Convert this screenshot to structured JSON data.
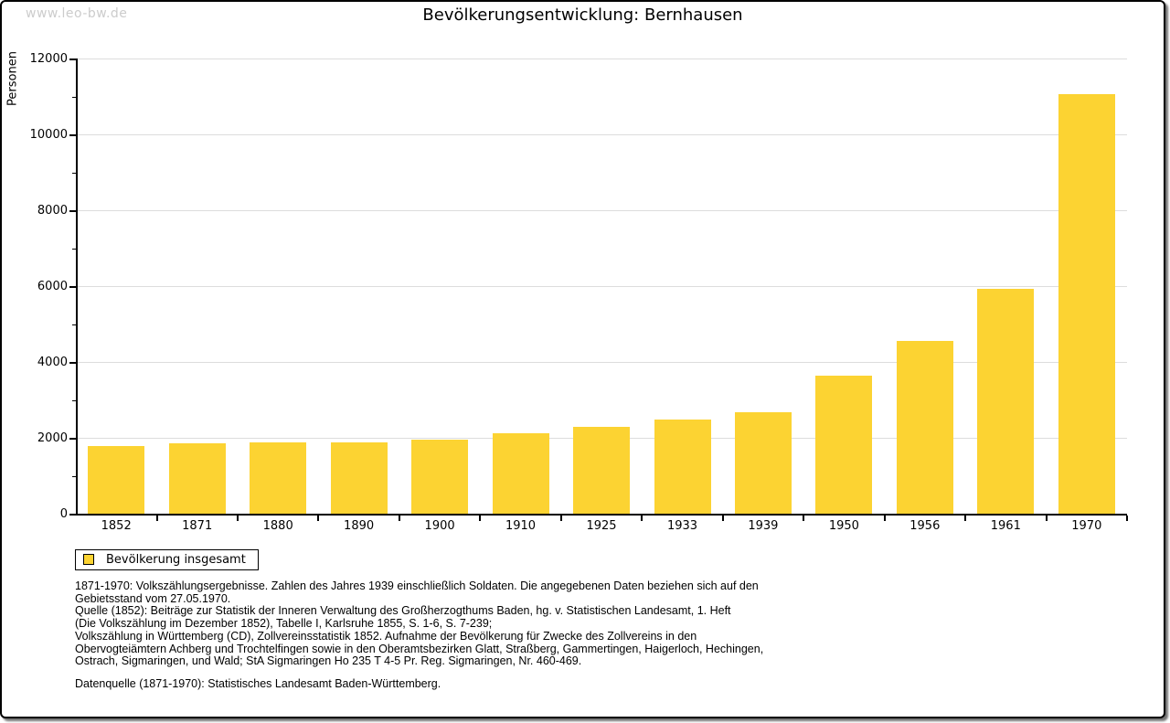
{
  "watermark": "www.leo-bw.de",
  "title": "Bevölkerungsentwicklung: Bernhausen",
  "legend": {
    "label": "Bevölkerung insgesamt"
  },
  "colors": {
    "bar": "#fcd332",
    "grid": "#dddddd",
    "axis": "#000000",
    "watermark": "#cccccc"
  },
  "chart_data": {
    "type": "bar",
    "title": "Bevölkerungsentwicklung: Bernhausen",
    "xlabel": "",
    "ylabel": "Personen",
    "series_name": "Bevölkerung insgesamt",
    "categories": [
      "1852",
      "1871",
      "1880",
      "1890",
      "1900",
      "1910",
      "1925",
      "1933",
      "1939",
      "1950",
      "1956",
      "1961",
      "1970"
    ],
    "values": [
      1775,
      1860,
      1885,
      1880,
      1955,
      2120,
      2280,
      2495,
      2665,
      3650,
      4555,
      5925,
      11060
    ],
    "ylim": [
      0,
      12000
    ],
    "ytick_step": 2000,
    "yminor_step": 1000,
    "yticks": [
      0,
      2000,
      4000,
      6000,
      8000,
      10000,
      12000
    ],
    "grid": true,
    "legend_position": "bottom-left",
    "bar_color": "#fcd332"
  },
  "footnotes": {
    "lines": [
      "1871-1970: Volkszählungsergebnisse. Zahlen des Jahres 1939 einschließlich Soldaten. Die angegebenen Daten beziehen sich auf den",
      "Gebietsstand vom 27.05.1970.",
      "Quelle (1852): Beiträge zur Statistik der Inneren Verwaltung des Großherzogthums Baden, hg. v. Statistischen Landesamt, 1. Heft",
      "(Die Volkszählung im Dezember 1852), Tabelle I, Karlsruhe 1855, S. 1-6, S. 7-239;",
      "Volkszählung in Württemberg (CD), Zollvereinsstatistik 1852. Aufnahme der Bevölkerung für Zwecke des Zollvereins in den",
      "Obervogteiämtern Achberg und Trochtelfingen sowie in den Oberamtsbezirken Glatt, Straßberg, Gammertingen, Haigerloch, Hechingen,",
      "Ostrach, Sigmaringen, und Wald; StA Sigmaringen Ho 235 T 4-5 Pr. Reg. Sigmaringen, Nr. 460-469."
    ],
    "datasource": "Datenquelle (1871-1970): Statistisches Landesamt Baden-Württemberg."
  }
}
